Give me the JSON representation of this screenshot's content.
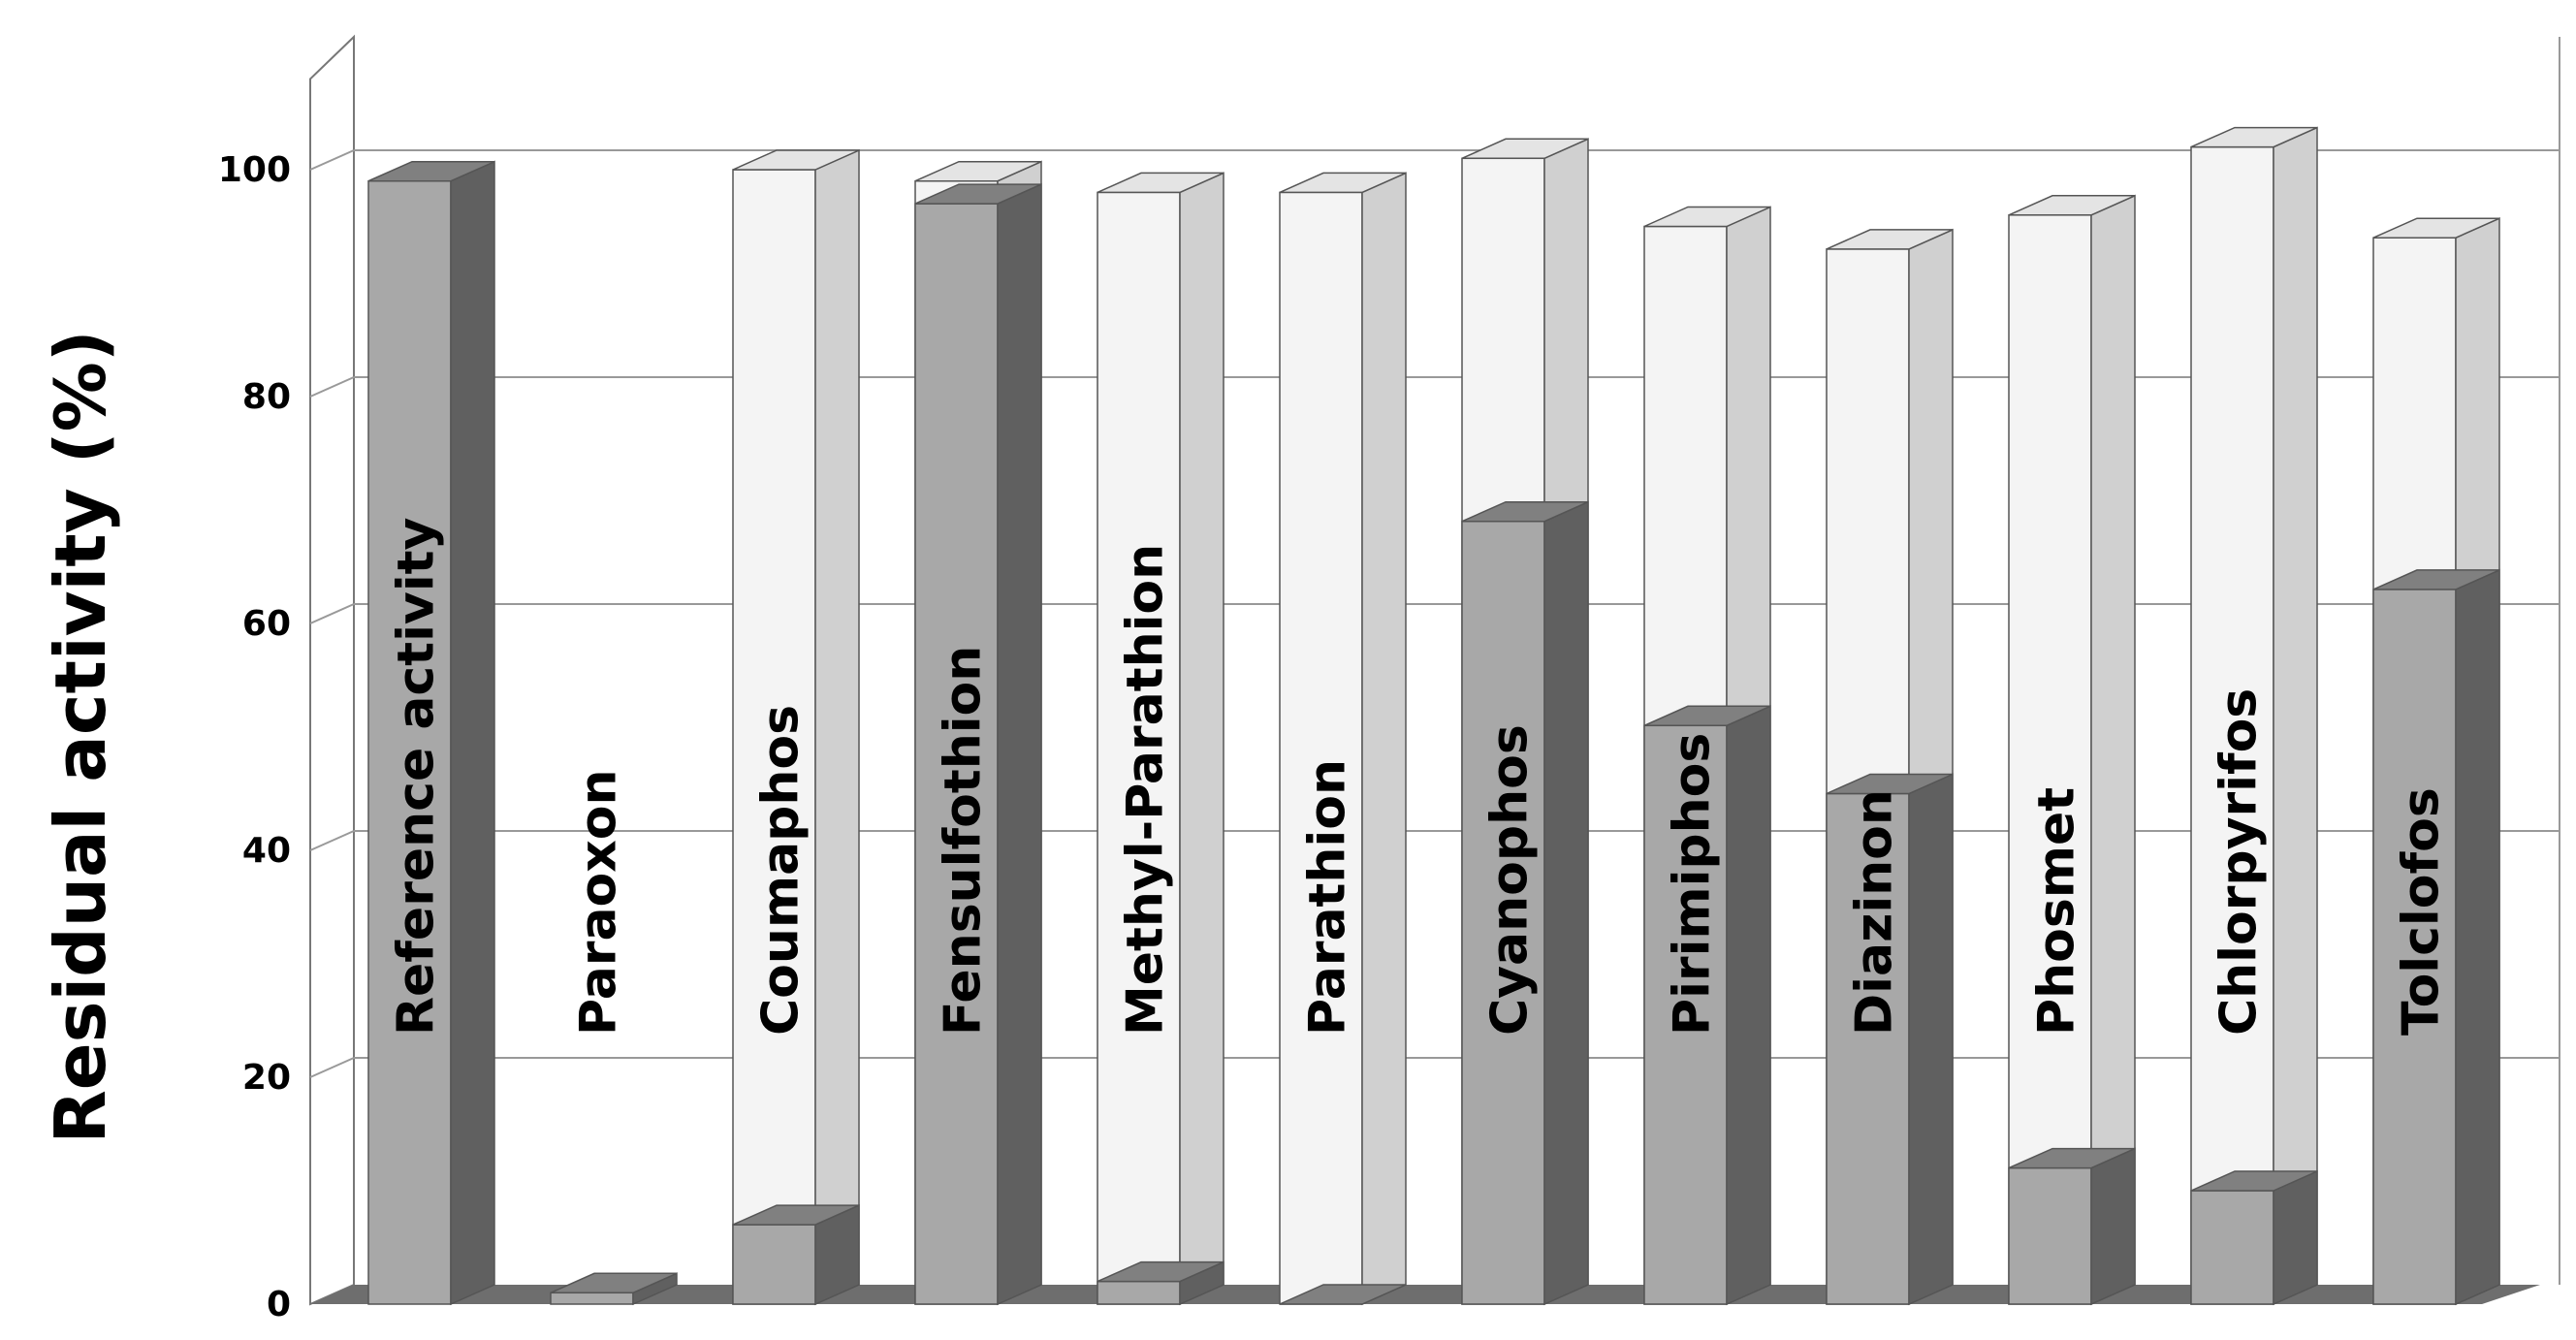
{
  "chart_data": {
    "type": "bar",
    "style": "3d-clustered-overlay",
    "ylabel": "Residual activity (%)",
    "xlabel": "",
    "title": "",
    "ylim": [
      0,
      100
    ],
    "yticks": [
      "0",
      "20",
      "40",
      "60",
      "80",
      "100"
    ],
    "grid": true,
    "legend": "none",
    "categories": [
      "Reference activity",
      "Paraoxon",
      "Coumaphos",
      "Fensulfothion",
      "Methyl-Parathion",
      "Parathion",
      "Cyanophos",
      "Pirimiphos",
      "Diazinon",
      "Phosmet",
      "Chlorpyrifos",
      "Tolclofos"
    ],
    "series": [
      {
        "color": "#a8a8a8",
        "values": [
          99,
          1,
          7,
          97,
          2,
          0,
          69,
          51,
          45,
          12,
          10,
          63
        ]
      },
      {
        "color": "#f4f4f4",
        "values": [
          null,
          null,
          100,
          99,
          98,
          98,
          101,
          95,
          93,
          96,
          102,
          94
        ]
      }
    ],
    "colors": {
      "front_face": "#a8a8a8",
      "front_side": "#606060",
      "front_top": "#808080",
      "back_face": "#f4f4f4",
      "back_side": "#d0d0d0",
      "back_top": "#e4e4e4",
      "floor": "#6e6e6e",
      "grid": "#999999"
    }
  }
}
